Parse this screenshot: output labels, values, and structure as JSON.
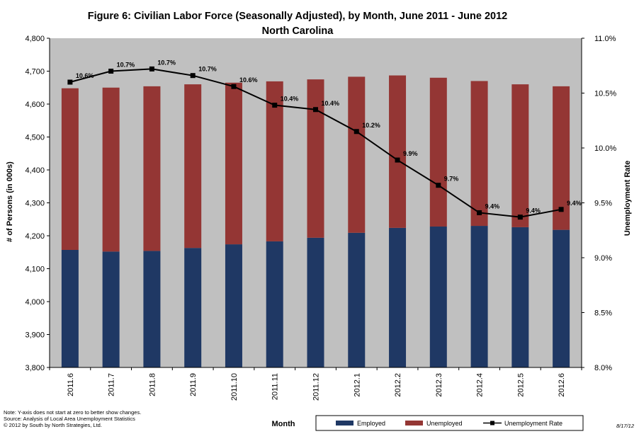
{
  "chart_data": {
    "type": "bar",
    "title": "Figure 6: Civilian Labor Force (Seasonally Adjusted), by Month, June 2011 - June 2012",
    "subtitle": "North Carolina",
    "xlabel": "Month",
    "ylabel": "# of Persons (in 000s)",
    "y2label": "Unemployment Rate",
    "ylim": [
      3800,
      4800
    ],
    "y_ticks": [
      "3,800",
      "3,900",
      "4,000",
      "4,100",
      "4,200",
      "4,300",
      "4,400",
      "4,500",
      "4,600",
      "4,700",
      "4,800"
    ],
    "y2lim": [
      8.0,
      11.0
    ],
    "y2_ticks": [
      "8.0%",
      "8.5%",
      "9.0%",
      "9.5%",
      "10.0%",
      "10.5%",
      "11.0%"
    ],
    "categories": [
      "2011.6",
      "2011.7",
      "2011.8",
      "2011.9",
      "2011.10",
      "2011.11",
      "2011.12",
      "2012.1",
      "2012.2",
      "2012.3",
      "2012.4",
      "2012.5",
      "2012.6"
    ],
    "series": [
      {
        "name": "Employed",
        "type": "bar",
        "color": "#1f3864",
        "values": [
          4157,
          4152,
          4154,
          4163,
          4174,
          4183,
          4194,
          4209,
          4224,
          4228,
          4230,
          4226,
          4218
        ]
      },
      {
        "name": "Unemployed",
        "type": "bar",
        "color": "#943634",
        "values": [
          491,
          498,
          500,
          497,
          491,
          486,
          481,
          474,
          463,
          452,
          440,
          434,
          436
        ]
      },
      {
        "name": "Unemployment Rate",
        "type": "line",
        "axis": "right",
        "color": "#000000",
        "values": [
          10.6,
          10.7,
          10.72,
          10.66,
          10.56,
          10.39,
          10.35,
          10.15,
          9.89,
          9.66,
          9.41,
          9.37,
          9.44
        ],
        "labels": [
          "10.6%",
          "10.7%",
          "10.7%",
          "10.7%",
          "10.6%",
          "10.4%",
          "10.4%",
          "10.2%",
          "9.9%",
          "9.7%",
          "9.4%",
          "9.4%",
          "9.4%"
        ]
      }
    ],
    "legend": [
      "Employed",
      "Unemployed",
      "Unemployment Rate"
    ],
    "legend_position": "bottom",
    "grid": false,
    "plot_background": "#c0c0c0"
  },
  "notes": [
    "Note: Y-axis does not start at zero to better show changes.",
    "Source:  Analysis of  Local Area Unemployment Statistics",
    "© 2012 by South by North Strategies, Ltd."
  ],
  "date_stamp": "8/17/12"
}
